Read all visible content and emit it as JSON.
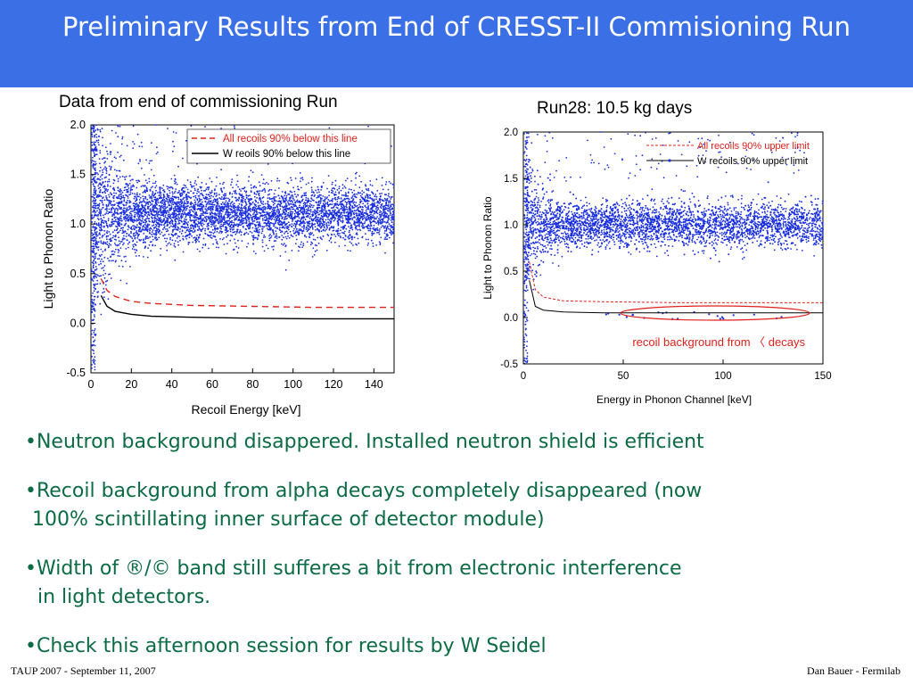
{
  "slide": {
    "title": "Preliminary Results from End of CRESST-II Commisioning Run",
    "left_caption": "Data from end of commissioning Run",
    "right_caption": "Run28: 10.5 kg days",
    "bullets": [
      "•Neutron background disappered. Installed neutron shield is efficient",
      "•Recoil background from alpha decays completely disappeared (now",
      "100% scintillating inner surface of detector module)",
      "•Width of ®/© band still sufferes a bit from electronic interference",
      "in light detectors.",
      "•Check this afternoon session for results by W Seidel"
    ],
    "footer_left": "TAUP 2007 - September 11, 2007",
    "footer_right": "Dan Bauer - Fermilab"
  },
  "colors": {
    "header": "#3a6fe6",
    "points": "#1a2fe0",
    "limit_red": "#e0201a",
    "bullet_text": "#0b6b45"
  },
  "chart_data": [
    {
      "type": "scatter",
      "xlabel": "Recoil Energy [keV]",
      "ylabel": "Light to Phonon Ratio",
      "xlim": [
        0,
        150
      ],
      "ylim": [
        -0.5,
        2.0
      ],
      "xticks": [
        "0",
        "20",
        "40",
        "60",
        "80",
        "100",
        "120",
        "140"
      ],
      "yticks": [
        "-0.5",
        "0.0",
        "0.5",
        "1.0",
        "1.5",
        "2.0"
      ],
      "legend_position": "top-right",
      "band": {
        "center": 1.1,
        "spread": 0.14
      },
      "series": [
        {
          "name": "All recoils 90% below this line",
          "style": "dashed",
          "color": "#e0201a",
          "x": [
            5,
            8,
            12,
            20,
            30,
            50,
            80,
            110,
            150
          ],
          "y": [
            0.45,
            0.33,
            0.27,
            0.22,
            0.2,
            0.18,
            0.17,
            0.16,
            0.16
          ]
        },
        {
          "name": "W reoils 90% below this line",
          "style": "solid",
          "color": "#000000",
          "x": [
            5,
            8,
            12,
            20,
            30,
            50,
            80,
            110,
            150
          ],
          "y": [
            0.28,
            0.17,
            0.12,
            0.09,
            0.07,
            0.06,
            0.05,
            0.045,
            0.045
          ]
        }
      ]
    },
    {
      "type": "scatter",
      "xlabel": "Energy in Phonon Channel [keV]",
      "ylabel": "Light to Phonon Ratio",
      "xlim": [
        0,
        150
      ],
      "ylim": [
        -0.5,
        2.0
      ],
      "xticks": [
        "0",
        "50",
        "100",
        "150"
      ],
      "yticks": [
        "-0.5",
        "0.0",
        "0.5",
        "1.0",
        "1.5",
        "2.0"
      ],
      "legend_position": "top-right",
      "band": {
        "center": 1.0,
        "spread": 0.12
      },
      "annotation": "recoil background from 〈 decays",
      "series": [
        {
          "name": "All recoils 90% upper limit",
          "style": "dashed",
          "color": "#e0201a",
          "x": [
            3,
            6,
            10,
            20,
            40,
            80,
            150
          ],
          "y": [
            0.6,
            0.3,
            0.22,
            0.18,
            0.17,
            0.16,
            0.16
          ]
        },
        {
          "name": "W recoils 90% upper limit",
          "style": "solid",
          "color": "#000000",
          "x": [
            3,
            6,
            10,
            20,
            40,
            80,
            150
          ],
          "y": [
            0.4,
            0.12,
            0.08,
            0.06,
            0.05,
            0.05,
            0.05
          ]
        }
      ]
    }
  ]
}
